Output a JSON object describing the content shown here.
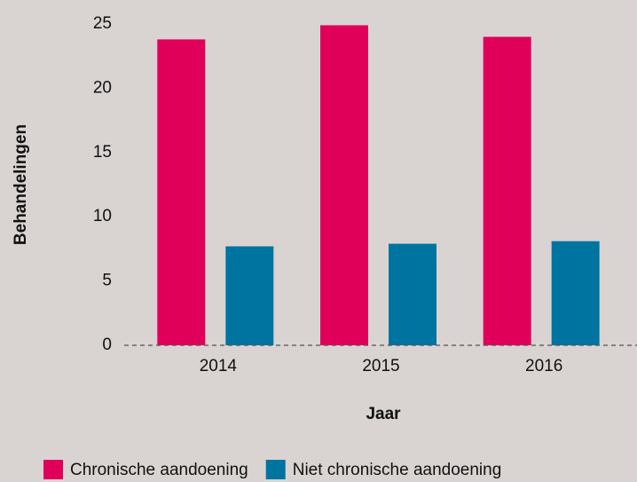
{
  "chart_data": {
    "type": "bar",
    "x_label": "Jaar",
    "y_label": "Behandelingen",
    "categories": [
      "2014",
      "2015",
      "2016"
    ],
    "series": [
      {
        "name": "Chronische aandoening",
        "color": "#e0005a",
        "values": [
          23.8,
          24.9,
          24.0
        ]
      },
      {
        "name": "Niet chronische aandoening",
        "color": "#0074a0",
        "values": [
          7.7,
          7.9,
          8.1
        ]
      }
    ],
    "ylim": [
      0,
      25
    ],
    "yticks": [
      0,
      5,
      10,
      15,
      20,
      25
    ],
    "grid": false,
    "legend": "bottom"
  }
}
